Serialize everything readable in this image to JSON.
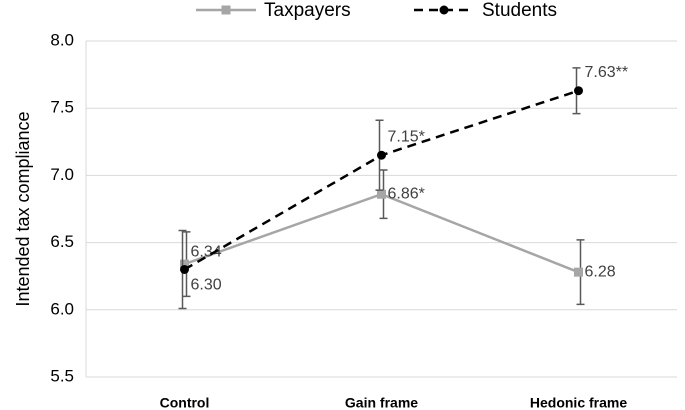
{
  "chart_data": {
    "type": "line",
    "ylabel": "Intended tax compliance",
    "categories": [
      "Control",
      "Gain frame",
      "Hedonic frame"
    ],
    "series": [
      {
        "name": "Taxpayers",
        "color": "#a6a6a6",
        "dash": false,
        "marker": "square",
        "values": [
          6.34,
          6.86,
          6.28
        ],
        "errors": [
          0.24,
          0.18,
          0.24
        ],
        "value_labels": [
          "6.34",
          "6.86*",
          "6.28"
        ]
      },
      {
        "name": "Students",
        "color": "#000000",
        "dash": true,
        "marker": "circle",
        "values": [
          6.3,
          7.15,
          7.63
        ],
        "errors": [
          0.29,
          0.26,
          0.17
        ],
        "value_labels": [
          "6.30",
          "7.15*",
          "7.63**"
        ]
      }
    ],
    "ylim": [
      5.5,
      8.0
    ],
    "yticks": [
      5.5,
      {
        "value": 6.0,
        "label": "6.0"
      },
      6.5,
      {
        "value": 7.0,
        "label": "7.0"
      },
      7.5,
      {
        "value": 8.0,
        "label": "8.0"
      }
    ],
    "grid": true,
    "legend": "top"
  }
}
